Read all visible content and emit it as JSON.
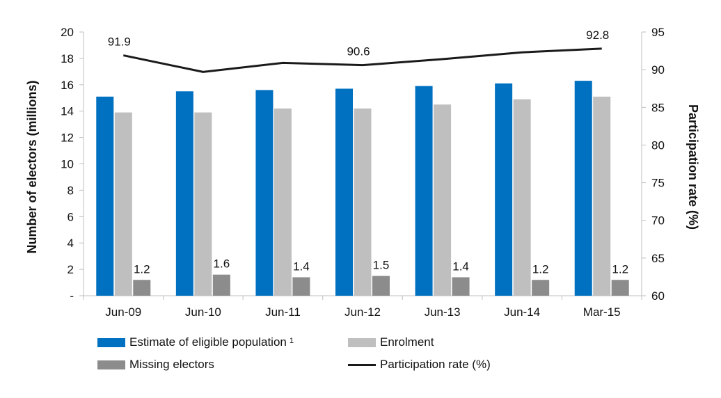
{
  "chart_data": {
    "type": "bar",
    "categories": [
      "Jun-09",
      "Jun-10",
      "Jun-11",
      "Jun-12",
      "Jun-13",
      "Jun-14",
      "Mar-15"
    ],
    "series": [
      {
        "name": "Estimate of eligible population",
        "name_superscript": "1",
        "axis": "left",
        "type": "bar",
        "color": "#0070C0",
        "values": [
          15.1,
          15.5,
          15.6,
          15.7,
          15.9,
          16.1,
          16.3
        ]
      },
      {
        "name": "Enrolment",
        "axis": "left",
        "type": "bar",
        "color": "#BFBFBF",
        "values": [
          13.9,
          13.9,
          14.2,
          14.2,
          14.5,
          14.9,
          15.1
        ]
      },
      {
        "name": "Missing electors",
        "axis": "left",
        "type": "bar",
        "color": "#8C8C8C",
        "values": [
          1.2,
          1.6,
          1.4,
          1.5,
          1.4,
          1.2,
          1.2
        ],
        "data_labels": [
          "1.2",
          "1.6",
          "1.4",
          "1.5",
          "1.4",
          "1.2",
          "1.2"
        ]
      },
      {
        "name": "Participation rate (%)",
        "axis": "right",
        "type": "line",
        "color": "#1a1a1a",
        "values": [
          91.9,
          89.7,
          90.9,
          90.6,
          91.4,
          92.3,
          92.8
        ],
        "data_labels": [
          "91.9",
          "",
          "",
          "90.6",
          "",
          "",
          "92.8"
        ]
      }
    ],
    "ylabel": "Number of electors (millions)",
    "y2label": "Participation rate (%)",
    "ylim": [
      0,
      20
    ],
    "y2lim": [
      60,
      95
    ],
    "yticks": [
      "-",
      "2",
      "4",
      "6",
      "8",
      "10",
      "12",
      "14",
      "16",
      "18",
      "20"
    ],
    "y2ticks": [
      "60",
      "65",
      "70",
      "75",
      "80",
      "85",
      "90",
      "95"
    ],
    "grid": false,
    "legend_position": "bottom"
  }
}
